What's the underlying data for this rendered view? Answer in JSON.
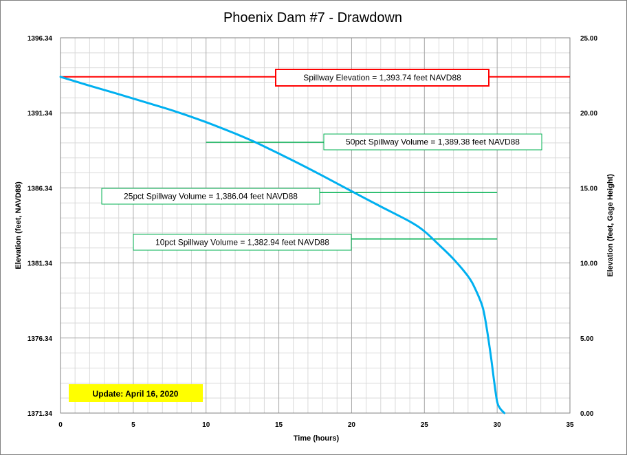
{
  "chart_data": {
    "type": "line",
    "title": "Phoenix Dam #7 - Drawdown",
    "xlabel": "Time (hours)",
    "ylabel": "Elevation (feet, NAVD88)",
    "y2label": "Elevation (feet, Gage Height)",
    "xlim": [
      0,
      35
    ],
    "ylim": [
      1371.34,
      1396.34
    ],
    "y2lim": [
      0,
      25
    ],
    "x_ticks": [
      "0",
      "5",
      "10",
      "15",
      "20",
      "25",
      "30",
      "35"
    ],
    "y_ticks": [
      "1371.34",
      "1376.34",
      "1381.34",
      "1386.34",
      "1391.34",
      "1396.34"
    ],
    "y2_ticks": [
      "0.00",
      "5.00",
      "10.00",
      "15.00",
      "20.00",
      "25.00"
    ],
    "grid": true,
    "colors": {
      "curve": "#00b0f0",
      "spillway": "#ff0000",
      "volume": "#00b050",
      "update_bg": "#ffff00"
    },
    "series": [
      {
        "x": [
          0,
          2,
          4,
          6,
          8,
          10,
          12,
          13,
          14,
          16,
          18,
          20,
          22,
          24,
          25,
          26,
          27,
          28,
          28.5,
          29,
          29.3,
          29.6,
          29.8,
          30,
          30.2,
          30.5
        ],
        "y": [
          1393.74,
          1393.15,
          1392.58,
          1392.0,
          1391.4,
          1390.72,
          1389.96,
          1389.55,
          1389.1,
          1388.15,
          1387.15,
          1386.12,
          1385.1,
          1384.1,
          1383.45,
          1382.55,
          1381.6,
          1380.45,
          1379.6,
          1378.4,
          1376.9,
          1374.9,
          1373.4,
          1372.1,
          1371.65,
          1371.34
        ]
      }
    ],
    "annotations": [
      {
        "label": "Spillway Elevation = 1,393.74  feet NAVD88",
        "y": 1393.74,
        "x_start": 0,
        "x_end": 35,
        "kind": "spillway"
      },
      {
        "label": "50pct Spillway Volume = 1,389.38  feet NAVD88",
        "y": 1389.38,
        "x_start": 10,
        "x_end": 30,
        "kind": "volume"
      },
      {
        "label": "25pct Spillway Volume = 1,386.04  feet NAVD88",
        "y": 1386.04,
        "x_start": 10,
        "x_end": 30,
        "kind": "volume"
      },
      {
        "label": "10pct Spillway Volume = 1,382.94  feet NAVD88",
        "y": 1382.94,
        "x_start": 10,
        "x_end": 30,
        "kind": "volume"
      }
    ],
    "update_label": "Update: April 16, 2020"
  }
}
